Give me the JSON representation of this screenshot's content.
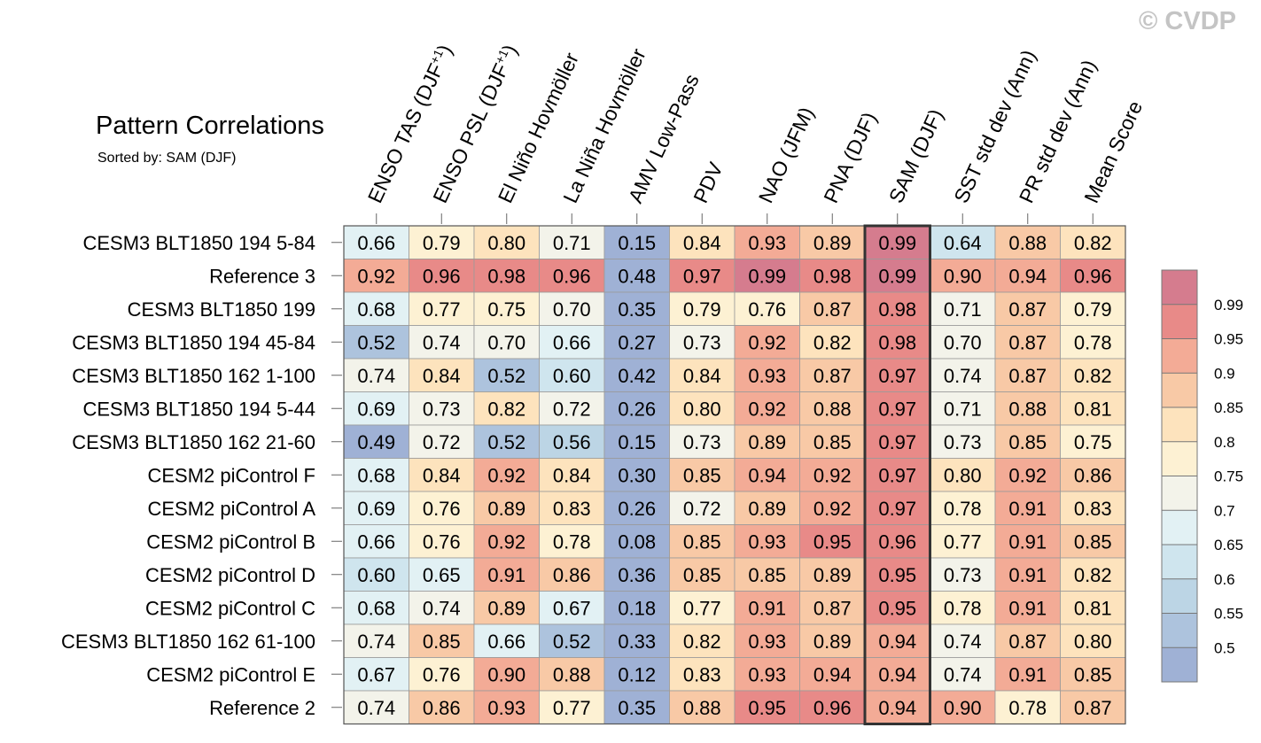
{
  "chart_data": {
    "type": "heatmap",
    "title": "Pattern Correlations",
    "subtitle": "Sorted by: SAM (DJF)",
    "watermark": "© CVDP",
    "highlight_column": "SAM (DJF)",
    "columns": [
      "ENSO TAS (DJF+1)",
      "ENSO PSL (DJF+1)",
      "El Niño Hovmöller",
      "La Niña Hovmöller",
      "AMV Low-Pass",
      "PDV",
      "NAO (JFM)",
      "PNA (DJF)",
      "SAM (DJF)",
      "SST std dev (Ann)",
      "PR std dev (Ann)",
      "Mean Score"
    ],
    "rows": [
      "CESM3 BLT1850 194 5-84",
      "Reference 3",
      "CESM3 BLT1850 199",
      "CESM3 BLT1850 194 45-84",
      "CESM3 BLT1850 162 1-100",
      "CESM3 BLT1850 194 5-44",
      "CESM3 BLT1850 162 21-60",
      "CESM2 piControl F",
      "CESM2 piControl A",
      "CESM2 piControl B",
      "CESM2 piControl D",
      "CESM2 piControl C",
      "CESM3 BLT1850 162 61-100",
      "CESM2 piControl E",
      "Reference 2"
    ],
    "values": [
      [
        0.66,
        0.79,
        0.8,
        0.71,
        0.15,
        0.84,
        0.93,
        0.89,
        0.99,
        0.64,
        0.88,
        0.82
      ],
      [
        0.92,
        0.96,
        0.98,
        0.96,
        0.48,
        0.97,
        0.99,
        0.98,
        0.99,
        0.9,
        0.94,
        0.96
      ],
      [
        0.68,
        0.77,
        0.75,
        0.7,
        0.35,
        0.79,
        0.76,
        0.87,
        0.98,
        0.71,
        0.87,
        0.79
      ],
      [
        0.52,
        0.74,
        0.7,
        0.66,
        0.27,
        0.73,
        0.92,
        0.82,
        0.98,
        0.7,
        0.87,
        0.78
      ],
      [
        0.74,
        0.84,
        0.52,
        0.6,
        0.42,
        0.84,
        0.93,
        0.87,
        0.97,
        0.74,
        0.87,
        0.82
      ],
      [
        0.69,
        0.73,
        0.82,
        0.72,
        0.26,
        0.8,
        0.92,
        0.88,
        0.97,
        0.71,
        0.88,
        0.81
      ],
      [
        0.49,
        0.72,
        0.52,
        0.56,
        0.15,
        0.73,
        0.89,
        0.85,
        0.97,
        0.73,
        0.85,
        0.75
      ],
      [
        0.68,
        0.84,
        0.92,
        0.84,
        0.3,
        0.85,
        0.94,
        0.92,
        0.97,
        0.8,
        0.92,
        0.86
      ],
      [
        0.69,
        0.76,
        0.89,
        0.83,
        0.26,
        0.72,
        0.89,
        0.92,
        0.97,
        0.78,
        0.91,
        0.83
      ],
      [
        0.66,
        0.76,
        0.92,
        0.78,
        0.08,
        0.85,
        0.93,
        0.95,
        0.96,
        0.77,
        0.91,
        0.85
      ],
      [
        0.6,
        0.65,
        0.91,
        0.86,
        0.36,
        0.85,
        0.85,
        0.89,
        0.95,
        0.73,
        0.91,
        0.82
      ],
      [
        0.68,
        0.74,
        0.89,
        0.67,
        0.18,
        0.77,
        0.91,
        0.87,
        0.95,
        0.78,
        0.91,
        0.81
      ],
      [
        0.74,
        0.85,
        0.66,
        0.52,
        0.33,
        0.82,
        0.93,
        0.89,
        0.94,
        0.74,
        0.87,
        0.8
      ],
      [
        0.67,
        0.76,
        0.9,
        0.88,
        0.12,
        0.83,
        0.93,
        0.94,
        0.94,
        0.74,
        0.91,
        0.85
      ],
      [
        0.74,
        0.86,
        0.93,
        0.77,
        0.35,
        0.88,
        0.95,
        0.96,
        0.94,
        0.9,
        0.78,
        0.87
      ]
    ],
    "colorbar": {
      "thresholds": [
        0.5,
        0.55,
        0.6,
        0.65,
        0.7,
        0.75,
        0.8,
        0.85,
        0.9,
        0.95,
        0.99
      ],
      "labels": [
        "0.5",
        "0.55",
        "0.6",
        "0.65",
        "0.7",
        "0.75",
        "0.8",
        "0.85",
        "0.9",
        "0.95",
        "0.99"
      ],
      "colors": [
        "#9fb1d5",
        "#adc3dd",
        "#bcd5e5",
        "#cfe5ee",
        "#e2f1f4",
        "#f3f3ea",
        "#fdf1d3",
        "#fde3bd",
        "#f8c9a6",
        "#f3ab96",
        "#e88a88",
        "#d57c8e"
      ]
    }
  }
}
